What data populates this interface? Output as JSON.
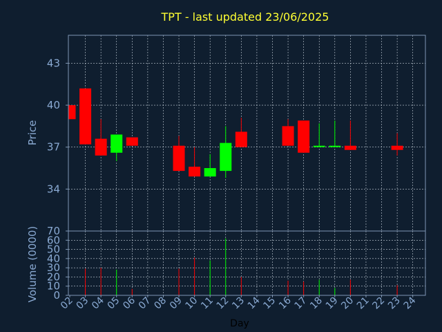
{
  "title": "TPT - last updated 23/06/2025",
  "chart_data": [
    {
      "type": "candlestick",
      "ylabel": "Price",
      "ylim": [
        31,
        45
      ],
      "yticks": [
        34,
        37,
        40,
        43
      ],
      "grid": true,
      "bull_color": "#00ff00",
      "bear_color": "#ff0000",
      "candles": [
        {
          "day": 2,
          "open": 40.0,
          "high": 40.0,
          "low": 39.0,
          "close": 39.0
        },
        {
          "day": 3,
          "open": 41.2,
          "high": 41.2,
          "low": 37.2,
          "close": 37.2
        },
        {
          "day": 4,
          "open": 37.6,
          "high": 39.0,
          "low": 36.4,
          "close": 36.4
        },
        {
          "day": 5,
          "open": 36.6,
          "high": 37.9,
          "low": 36.0,
          "close": 37.9
        },
        {
          "day": 6,
          "open": 37.7,
          "high": 37.7,
          "low": 37.1,
          "close": 37.1
        },
        {
          "day": 9,
          "open": 37.1,
          "high": 37.8,
          "low": 35.3,
          "close": 35.3
        },
        {
          "day": 10,
          "open": 35.6,
          "high": 37.0,
          "low": 34.9,
          "close": 34.9
        },
        {
          "day": 11,
          "open": 34.9,
          "high": 36.5,
          "low": 34.9,
          "close": 35.5
        },
        {
          "day": 12,
          "open": 35.3,
          "high": 38.5,
          "low": 34.8,
          "close": 37.3
        },
        {
          "day": 13,
          "open": 38.1,
          "high": 39.1,
          "low": 37.0,
          "close": 37.0
        },
        {
          "day": 16,
          "open": 38.5,
          "high": 39.0,
          "low": 37.1,
          "close": 37.1
        },
        {
          "day": 17,
          "open": 38.9,
          "high": 38.9,
          "low": 36.6,
          "close": 36.6
        },
        {
          "day": 18,
          "open": 37.0,
          "high": 38.7,
          "low": 37.0,
          "close": 37.1
        },
        {
          "day": 19,
          "open": 37.0,
          "high": 38.9,
          "low": 37.0,
          "close": 37.1
        },
        {
          "day": 20,
          "open": 37.1,
          "high": 38.9,
          "low": 36.8,
          "close": 36.8
        },
        {
          "day": 23,
          "open": 37.1,
          "high": 38.0,
          "low": 36.4,
          "close": 36.8
        }
      ]
    },
    {
      "type": "bar",
      "ylabel": "Volume (0000)",
      "ylim": [
        0,
        70
      ],
      "yticks": [
        0,
        10,
        20,
        30,
        40,
        50,
        60,
        70
      ],
      "xlabel": "Day",
      "x_categories": [
        "02",
        "03",
        "04",
        "05",
        "06",
        "07",
        "08",
        "09",
        "10",
        "11",
        "12",
        "13",
        "14",
        "15",
        "16",
        "17",
        "18",
        "19",
        "20",
        "21",
        "22",
        "23",
        "24"
      ],
      "bars": [
        {
          "day": 3,
          "value": 29,
          "color": "red"
        },
        {
          "day": 4,
          "value": 30,
          "color": "red"
        },
        {
          "day": 5,
          "value": 28,
          "color": "green"
        },
        {
          "day": 6,
          "value": 7,
          "color": "red"
        },
        {
          "day": 9,
          "value": 29,
          "color": "red"
        },
        {
          "day": 10,
          "value": 41,
          "color": "red"
        },
        {
          "day": 11,
          "value": 38,
          "color": "green"
        },
        {
          "day": 12,
          "value": 62,
          "color": "green"
        },
        {
          "day": 13,
          "value": 20,
          "color": "red"
        },
        {
          "day": 16,
          "value": 16,
          "color": "red"
        },
        {
          "day": 17,
          "value": 15,
          "color": "red"
        },
        {
          "day": 18,
          "value": 17,
          "color": "green"
        },
        {
          "day": 19,
          "value": 8,
          "color": "green"
        },
        {
          "day": 20,
          "value": 17,
          "color": "red"
        },
        {
          "day": 23,
          "value": 11,
          "color": "red"
        }
      ]
    }
  ]
}
